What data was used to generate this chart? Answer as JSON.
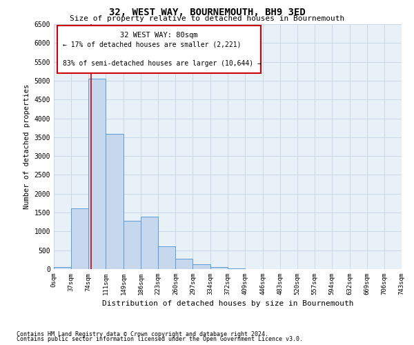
{
  "title": "32, WEST WAY, BOURNEMOUTH, BH9 3ED",
  "subtitle": "Size of property relative to detached houses in Bournemouth",
  "xlabel": "Distribution of detached houses by size in Bournemouth",
  "ylabel": "Number of detached properties",
  "footer1": "Contains HM Land Registry data © Crown copyright and database right 2024.",
  "footer2": "Contains public sector information licensed under the Open Government Licence v3.0.",
  "annotation_title": "32 WEST WAY: 80sqm",
  "annotation_line1": "← 17% of detached houses are smaller (2,221)",
  "annotation_line2": "83% of semi-detached houses are larger (10,644) →",
  "property_size": 80,
  "bin_edges": [
    0,
    37,
    74,
    111,
    149,
    186,
    223,
    260,
    297,
    334,
    372,
    409,
    446,
    483,
    520,
    557,
    594,
    632,
    669,
    706,
    743
  ],
  "bar_heights": [
    60,
    1620,
    5060,
    3580,
    1290,
    1390,
    600,
    270,
    120,
    60,
    20,
    0,
    0,
    0,
    0,
    0,
    0,
    0,
    0,
    0
  ],
  "bar_color": "#c5d8ed",
  "bar_edge_color": "#5b9bd5",
  "line_color": "#cc0000",
  "grid_color": "#c8d8e8",
  "bg_color": "#e8f0f8",
  "ylim": [
    0,
    6500
  ],
  "yticks": [
    0,
    500,
    1000,
    1500,
    2000,
    2500,
    3000,
    3500,
    4000,
    4500,
    5000,
    5500,
    6000,
    6500
  ]
}
